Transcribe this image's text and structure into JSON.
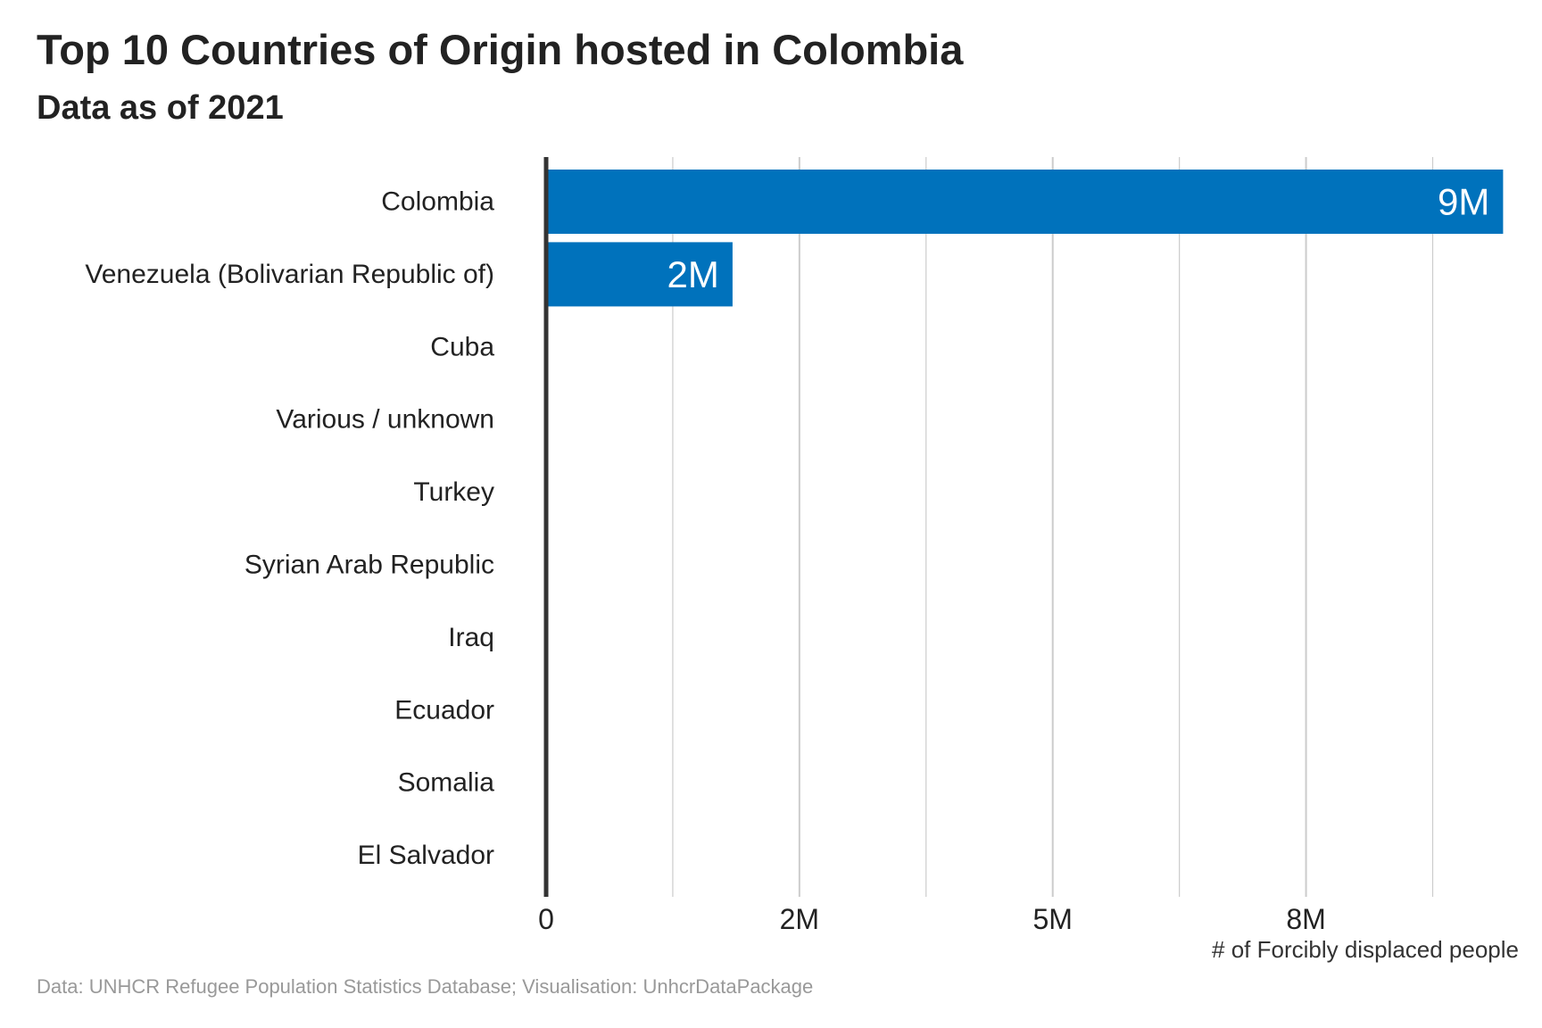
{
  "title": "Top 10 Countries of Origin hosted in Colombia",
  "subtitle": "Data as of 2021",
  "caption": "Data: UNHCR Refugee Population Statistics Database; Visualisation: UnhcrDataPackage",
  "colors": {
    "bar": "#0072bc",
    "grid": "#cccccc",
    "axis": "#333333",
    "text": "#222222",
    "bar_label": "#ffffff"
  },
  "chart_data": {
    "type": "bar",
    "orientation": "horizontal",
    "categories": [
      "Colombia",
      "Venezuela (Bolivarian Republic of)",
      "Cuba",
      "Various / unknown",
      "Turkey",
      "Syrian Arab Republic",
      "Iraq",
      "Ecuador",
      "Somalia",
      "El Salvador"
    ],
    "values": [
      9445000,
      1840000,
      1200,
      900,
      600,
      500,
      400,
      300,
      200,
      100
    ],
    "data_labels": [
      "9M",
      "2M",
      "",
      "",
      "",
      "",
      "",
      "",
      "",
      ""
    ],
    "title": "Top 10 Countries of Origin hosted in Colombia",
    "subtitle": "Data as of 2021",
    "xlabel": "# of Forcibly displaced people",
    "ylabel": "",
    "xlim": [
      0,
      9600000
    ],
    "xticks": [
      0,
      2500000,
      5000000,
      7500000
    ],
    "xtick_labels": [
      "0",
      "2M",
      "5M",
      "8M"
    ],
    "minor_gridlines": [
      1250000,
      3750000,
      6250000,
      8750000
    ],
    "grid": "vertical"
  }
}
